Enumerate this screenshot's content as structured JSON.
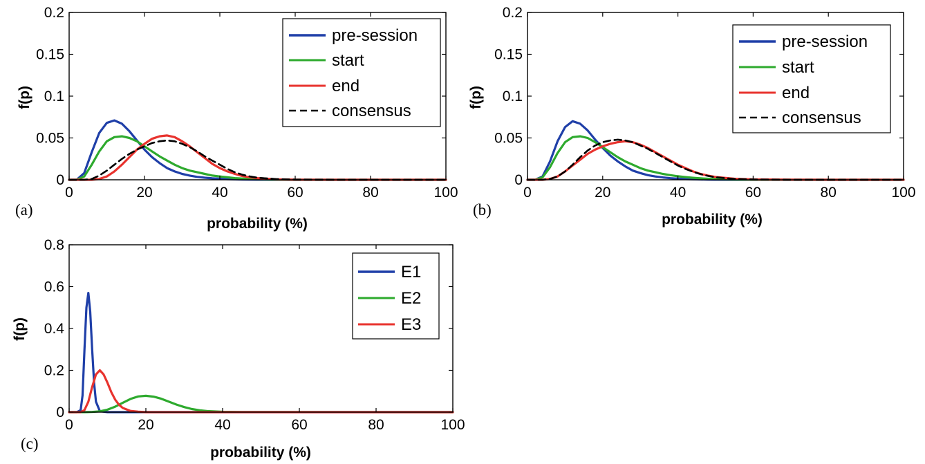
{
  "chart_data": [
    {
      "panel": "(a)",
      "type": "line",
      "xlabel": "probability (%)",
      "ylabel": "f(p)",
      "xlim": [
        0,
        100
      ],
      "ylim": [
        0,
        0.2
      ],
      "xticks": [
        "0",
        "20",
        "40",
        "60",
        "80",
        "100"
      ],
      "yticks": [
        "0",
        "0.05",
        "0.1",
        "0.15",
        "0.2"
      ],
      "grid": false,
      "legend_position": "top-right",
      "x": [
        0,
        2,
        4,
        6,
        8,
        10,
        12,
        14,
        16,
        18,
        20,
        22,
        24,
        26,
        28,
        30,
        32,
        34,
        36,
        38,
        40,
        42,
        44,
        46,
        48,
        50,
        55,
        60,
        70,
        80,
        100
      ],
      "series": [
        {
          "name": "pre-session",
          "color": "#1f3fa8",
          "dash": "solid",
          "values": [
            0,
            0,
            0.008,
            0.033,
            0.056,
            0.068,
            0.071,
            0.067,
            0.058,
            0.047,
            0.036,
            0.027,
            0.02,
            0.014,
            0.01,
            0.007,
            0.005,
            0.0035,
            0.0025,
            0.0017,
            0.0012,
            0.0008,
            0.0005,
            0.0003,
            0.0002,
            0.0001,
            0,
            0,
            0,
            0,
            0
          ]
        },
        {
          "name": "start",
          "color": "#2eaa2e",
          "dash": "solid",
          "values": [
            0,
            0,
            0.004,
            0.018,
            0.034,
            0.046,
            0.051,
            0.052,
            0.05,
            0.046,
            0.04,
            0.034,
            0.028,
            0.023,
            0.018,
            0.014,
            0.011,
            0.009,
            0.007,
            0.005,
            0.004,
            0.003,
            0.002,
            0.0015,
            0.001,
            0.0007,
            0.0002,
            0,
            0,
            0,
            0
          ]
        },
        {
          "name": "end",
          "color": "#e8332e",
          "dash": "solid",
          "values": [
            0,
            0,
            0,
            0,
            0.001,
            0.004,
            0.01,
            0.018,
            0.027,
            0.036,
            0.043,
            0.049,
            0.052,
            0.053,
            0.051,
            0.046,
            0.04,
            0.033,
            0.026,
            0.019,
            0.014,
            0.01,
            0.007,
            0.0045,
            0.003,
            0.002,
            0.0005,
            0.0001,
            0,
            0,
            0
          ]
        },
        {
          "name": "consensus",
          "color": "#000000",
          "dash": "dashed",
          "values": [
            0,
            0,
            0,
            0.001,
            0.005,
            0.011,
            0.018,
            0.025,
            0.031,
            0.036,
            0.04,
            0.044,
            0.046,
            0.047,
            0.046,
            0.043,
            0.039,
            0.034,
            0.028,
            0.023,
            0.018,
            0.013,
            0.009,
            0.006,
            0.004,
            0.0025,
            0.0008,
            0.0002,
            0,
            0,
            0
          ]
        }
      ]
    },
    {
      "panel": "(b)",
      "type": "line",
      "xlabel": "probability (%)",
      "ylabel": "f(p)",
      "xlim": [
        0,
        100
      ],
      "ylim": [
        0,
        0.2
      ],
      "xticks": [
        "0",
        "20",
        "40",
        "60",
        "80",
        "100"
      ],
      "yticks": [
        "0",
        "0.05",
        "0.1",
        "0.15",
        "0.2"
      ],
      "grid": false,
      "legend_position": "top-right",
      "x": [
        0,
        2,
        4,
        6,
        8,
        10,
        12,
        14,
        16,
        18,
        20,
        22,
        24,
        26,
        28,
        30,
        32,
        34,
        36,
        38,
        40,
        42,
        44,
        46,
        48,
        50,
        55,
        60,
        70,
        80,
        100
      ],
      "series": [
        {
          "name": "pre-session",
          "color": "#1f3fa8",
          "dash": "solid",
          "values": [
            0,
            0,
            0.004,
            0.022,
            0.046,
            0.063,
            0.07,
            0.067,
            0.059,
            0.048,
            0.038,
            0.029,
            0.022,
            0.016,
            0.011,
            0.008,
            0.0055,
            0.004,
            0.0028,
            0.0019,
            0.0013,
            0.0009,
            0.0006,
            0.0004,
            0.0002,
            0.0001,
            0,
            0,
            0,
            0,
            0
          ]
        },
        {
          "name": "start",
          "color": "#2eaa2e",
          "dash": "solid",
          "values": [
            0,
            0,
            0.003,
            0.015,
            0.032,
            0.045,
            0.051,
            0.052,
            0.05,
            0.045,
            0.039,
            0.033,
            0.027,
            0.022,
            0.018,
            0.014,
            0.011,
            0.009,
            0.007,
            0.0055,
            0.0042,
            0.0032,
            0.0024,
            0.0017,
            0.0012,
            0.0008,
            0.0003,
            0.0001,
            0,
            0,
            0
          ]
        },
        {
          "name": "end",
          "color": "#e8332e",
          "dash": "solid",
          "values": [
            0,
            0,
            0,
            0.001,
            0.004,
            0.01,
            0.017,
            0.024,
            0.031,
            0.036,
            0.04,
            0.043,
            0.045,
            0.046,
            0.045,
            0.042,
            0.038,
            0.033,
            0.028,
            0.023,
            0.018,
            0.014,
            0.01,
            0.007,
            0.005,
            0.0033,
            0.0012,
            0.0004,
            0.0001,
            0,
            0
          ]
        },
        {
          "name": "consensus",
          "color": "#000000",
          "dash": "dashed",
          "values": [
            0,
            0,
            0,
            0.001,
            0.004,
            0.01,
            0.018,
            0.027,
            0.035,
            0.041,
            0.045,
            0.047,
            0.048,
            0.047,
            0.045,
            0.041,
            0.037,
            0.032,
            0.027,
            0.022,
            0.017,
            0.013,
            0.0095,
            0.0068,
            0.0046,
            0.003,
            0.001,
            0.0003,
            0,
            0,
            0
          ]
        }
      ]
    },
    {
      "panel": "(c)",
      "type": "line",
      "xlabel": "probability (%)",
      "ylabel": "f(p)",
      "xlim": [
        0,
        100
      ],
      "ylim": [
        0,
        0.8
      ],
      "xticks": [
        "0",
        "20",
        "40",
        "60",
        "80",
        "100"
      ],
      "yticks": [
        "0",
        "0.2",
        "0.4",
        "0.6",
        "0.8"
      ],
      "grid": false,
      "legend_position": "top-right",
      "series": [
        {
          "name": "E1",
          "color": "#1f3fa8",
          "dash": "solid",
          "x": [
            0,
            2,
            3,
            3.5,
            4,
            4.5,
            5,
            5.5,
            6,
            6.5,
            7,
            8,
            10,
            100
          ],
          "values": [
            0,
            0,
            0.01,
            0.08,
            0.3,
            0.5,
            0.57,
            0.48,
            0.3,
            0.14,
            0.05,
            0.005,
            0,
            0
          ]
        },
        {
          "name": "E2",
          "color": "#2eaa2e",
          "dash": "solid",
          "x": [
            0,
            4,
            6,
            8,
            10,
            12,
            14,
            16,
            18,
            20,
            22,
            24,
            26,
            28,
            30,
            32,
            34,
            36,
            40,
            45,
            100
          ],
          "values": [
            0,
            0,
            0.001,
            0.004,
            0.012,
            0.026,
            0.045,
            0.063,
            0.075,
            0.078,
            0.074,
            0.064,
            0.05,
            0.036,
            0.024,
            0.015,
            0.009,
            0.005,
            0.0015,
            0.0003,
            0
          ]
        },
        {
          "name": "E3",
          "color": "#e8332e",
          "dash": "solid",
          "x": [
            0,
            3,
            4,
            5,
            6,
            7,
            8,
            9,
            10,
            11,
            12,
            13,
            14,
            16,
            18,
            20,
            100
          ],
          "values": [
            0,
            0,
            0.01,
            0.05,
            0.12,
            0.18,
            0.2,
            0.18,
            0.14,
            0.095,
            0.06,
            0.035,
            0.02,
            0.006,
            0.002,
            0,
            0
          ]
        }
      ]
    }
  ]
}
